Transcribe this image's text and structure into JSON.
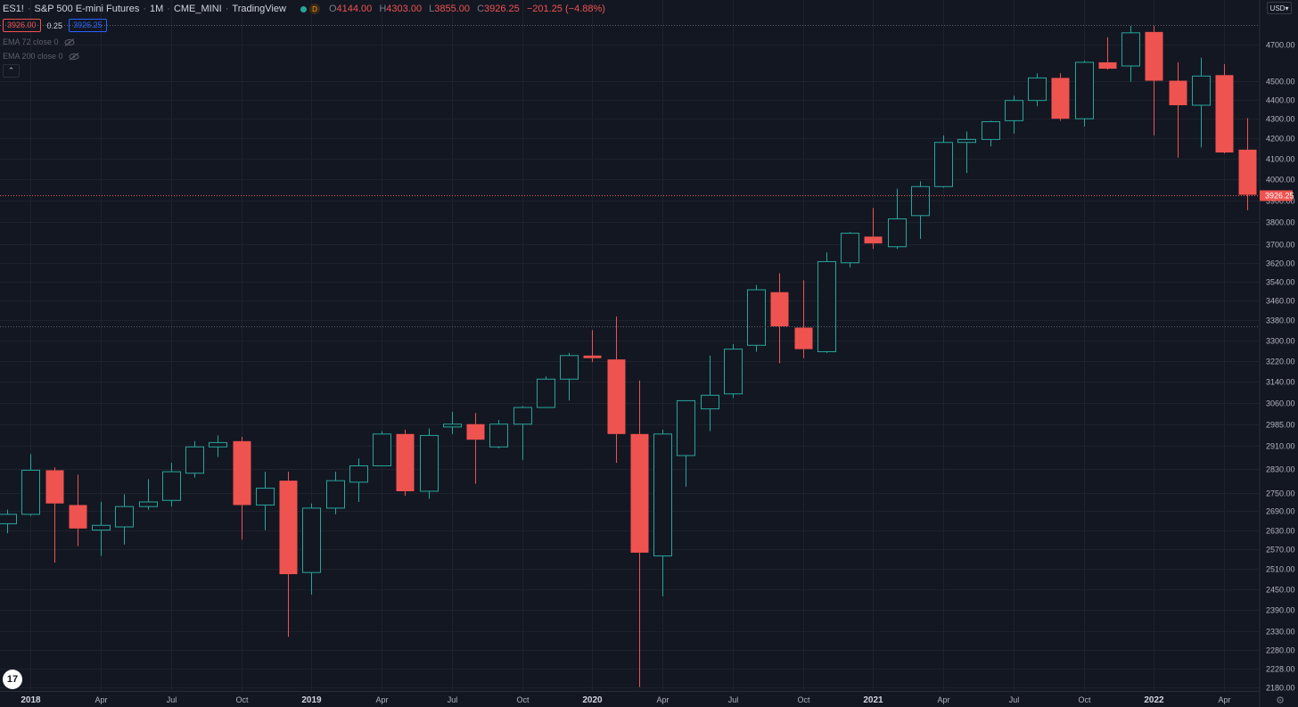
{
  "header": {
    "symbol": "ES1!",
    "name": "S&P 500 E-mini Futures",
    "interval": "1M",
    "exchange": "CME_MINI",
    "source": "TradingView",
    "badge_letter": "D",
    "ohlc": {
      "o_label": "O",
      "o_value": "4144.00",
      "h_label": "H",
      "h_value": "4303.00",
      "l_label": "L",
      "l_value": "3855.00",
      "c_label": "C",
      "c_value": "3926.25",
      "change": "−201.25 (−4.88%)"
    }
  },
  "quotes": {
    "bid": "3926.00",
    "spread": "0.25",
    "ask": "3926.25"
  },
  "indicators": [
    {
      "label": "EMA 72 close 0",
      "icon": "eye-hidden-icon"
    },
    {
      "label": "EMA 200 close 0",
      "icon": "eye-hidden-icon"
    }
  ],
  "currency": "USD",
  "logo_text": "17",
  "colors": {
    "up": "#26a69a",
    "down": "#ef5350",
    "background": "#131722",
    "grid": "#1e222d",
    "text": "#b2b5be"
  },
  "chart_data": {
    "type": "candlestick",
    "y_ticks": [
      4700,
      4500,
      4400,
      4300,
      4200,
      4100,
      4000,
      3900,
      3800,
      3700,
      3620,
      3540,
      3460,
      3380,
      3300,
      3220,
      3140,
      3060,
      2985,
      2910,
      2830,
      2750,
      2690,
      2630,
      2570,
      2510,
      2450,
      2390,
      2330,
      2280,
      2228,
      2180
    ],
    "y_tick_labels": [
      "4700.00",
      "4500.00",
      "4400.00",
      "4300.00",
      "4200.00",
      "4100.00",
      "4000.00",
      "3900.00",
      "3800.00",
      "3700.00",
      "3620.00",
      "3540.00",
      "3460.00",
      "3380.00",
      "3300.00",
      "3220.00",
      "3140.00",
      "3060.00",
      "2985.00",
      "2910.00",
      "2830.00",
      "2750.00",
      "2690.00",
      "2630.00",
      "2570.00",
      "2510.00",
      "2450.00",
      "2390.00",
      "2330.00",
      "2280.00",
      "2228.00",
      "2180.00"
    ],
    "y_scale": "log",
    "ylim": [
      2170,
      4810
    ],
    "x_tick_labels": [
      {
        "label": "2018",
        "bar": 1,
        "bold": true
      },
      {
        "label": "Apr",
        "bar": 4
      },
      {
        "label": "Jul",
        "bar": 7
      },
      {
        "label": "Oct",
        "bar": 10
      },
      {
        "label": "2019",
        "bar": 13,
        "bold": true
      },
      {
        "label": "Apr",
        "bar": 16
      },
      {
        "label": "Jul",
        "bar": 19
      },
      {
        "label": "Oct",
        "bar": 22
      },
      {
        "label": "2020",
        "bar": 25,
        "bold": true
      },
      {
        "label": "Apr",
        "bar": 28
      },
      {
        "label": "Jul",
        "bar": 31
      },
      {
        "label": "Oct",
        "bar": 34
      },
      {
        "label": "2021",
        "bar": 37,
        "bold": true
      },
      {
        "label": "Apr",
        "bar": 40
      },
      {
        "label": "Jul",
        "bar": 43
      },
      {
        "label": "Oct",
        "bar": 46
      },
      {
        "label": "2022",
        "bar": 49,
        "bold": true
      },
      {
        "label": "Apr",
        "bar": 52
      }
    ],
    "candles": [
      {
        "date": "2017-12",
        "o": 2650,
        "h": 2695,
        "l": 2620,
        "c": 2680
      },
      {
        "date": "2018-01",
        "o": 2680,
        "h": 2880,
        "l": 2675,
        "c": 2825
      },
      {
        "date": "2018-02",
        "o": 2825,
        "h": 2835,
        "l": 2530,
        "c": 2715
      },
      {
        "date": "2018-03",
        "o": 2710,
        "h": 2810,
        "l": 2580,
        "c": 2635
      },
      {
        "date": "2018-04",
        "o": 2630,
        "h": 2720,
        "l": 2550,
        "c": 2645
      },
      {
        "date": "2018-05",
        "o": 2640,
        "h": 2745,
        "l": 2585,
        "c": 2705
      },
      {
        "date": "2018-06",
        "o": 2705,
        "h": 2795,
        "l": 2695,
        "c": 2720
      },
      {
        "date": "2018-07",
        "o": 2725,
        "h": 2850,
        "l": 2705,
        "c": 2820
      },
      {
        "date": "2018-08",
        "o": 2815,
        "h": 2925,
        "l": 2800,
        "c": 2905
      },
      {
        "date": "2018-09",
        "o": 2905,
        "h": 2945,
        "l": 2870,
        "c": 2920
      },
      {
        "date": "2018-10",
        "o": 2925,
        "h": 2940,
        "l": 2600,
        "c": 2710
      },
      {
        "date": "2018-11",
        "o": 2710,
        "h": 2820,
        "l": 2630,
        "c": 2765
      },
      {
        "date": "2018-12",
        "o": 2790,
        "h": 2820,
        "l": 2315,
        "c": 2495
      },
      {
        "date": "2019-01",
        "o": 2500,
        "h": 2715,
        "l": 2435,
        "c": 2700
      },
      {
        "date": "2019-02",
        "o": 2700,
        "h": 2820,
        "l": 2680,
        "c": 2790
      },
      {
        "date": "2019-03",
        "o": 2785,
        "h": 2865,
        "l": 2720,
        "c": 2840
      },
      {
        "date": "2019-04",
        "o": 2840,
        "h": 2960,
        "l": 2840,
        "c": 2950
      },
      {
        "date": "2019-05",
        "o": 2950,
        "h": 2965,
        "l": 2740,
        "c": 2755
      },
      {
        "date": "2019-06",
        "o": 2755,
        "h": 2970,
        "l": 2730,
        "c": 2945
      },
      {
        "date": "2019-07",
        "o": 2975,
        "h": 3030,
        "l": 2950,
        "c": 2985
      },
      {
        "date": "2019-08",
        "o": 2985,
        "h": 3025,
        "l": 2780,
        "c": 2930
      },
      {
        "date": "2019-09",
        "o": 2905,
        "h": 3000,
        "l": 2900,
        "c": 2985
      },
      {
        "date": "2019-10",
        "o": 2985,
        "h": 3050,
        "l": 2860,
        "c": 3045
      },
      {
        "date": "2019-11",
        "o": 3045,
        "h": 3160,
        "l": 3045,
        "c": 3150
      },
      {
        "date": "2019-12",
        "o": 3150,
        "h": 3250,
        "l": 3070,
        "c": 3240
      },
      {
        "date": "2020-01",
        "o": 3240,
        "h": 3340,
        "l": 3215,
        "c": 3230
      },
      {
        "date": "2020-02",
        "o": 3225,
        "h": 3395,
        "l": 2850,
        "c": 2950
      },
      {
        "date": "2020-03",
        "o": 2950,
        "h": 3145,
        "l": 2180,
        "c": 2560
      },
      {
        "date": "2020-04",
        "o": 2550,
        "h": 2965,
        "l": 2430,
        "c": 2950
      },
      {
        "date": "2020-05",
        "o": 2875,
        "h": 3070,
        "l": 2770,
        "c": 3070
      },
      {
        "date": "2020-06",
        "o": 3040,
        "h": 3240,
        "l": 2960,
        "c": 3090
      },
      {
        "date": "2020-07",
        "o": 3095,
        "h": 3285,
        "l": 3080,
        "c": 3265
      },
      {
        "date": "2020-08",
        "o": 3280,
        "h": 3525,
        "l": 3255,
        "c": 3505
      },
      {
        "date": "2020-09",
        "o": 3495,
        "h": 3575,
        "l": 3210,
        "c": 3355
      },
      {
        "date": "2020-10",
        "o": 3350,
        "h": 3545,
        "l": 3230,
        "c": 3265
      },
      {
        "date": "2020-11",
        "o": 3255,
        "h": 3665,
        "l": 3250,
        "c": 3625
      },
      {
        "date": "2020-12",
        "o": 3620,
        "h": 3755,
        "l": 3600,
        "c": 3750
      },
      {
        "date": "2021-01",
        "o": 3735,
        "h": 3865,
        "l": 3680,
        "c": 3705
      },
      {
        "date": "2021-02",
        "o": 3690,
        "h": 3955,
        "l": 3680,
        "c": 3815
      },
      {
        "date": "2021-03",
        "o": 3830,
        "h": 3990,
        "l": 3725,
        "c": 3965
      },
      {
        "date": "2021-04",
        "o": 3965,
        "h": 4215,
        "l": 3960,
        "c": 4180
      },
      {
        "date": "2021-05",
        "o": 4180,
        "h": 4235,
        "l": 4030,
        "c": 4195
      },
      {
        "date": "2021-06",
        "o": 4195,
        "h": 4290,
        "l": 4160,
        "c": 4285
      },
      {
        "date": "2021-07",
        "o": 4290,
        "h": 4420,
        "l": 4225,
        "c": 4395
      },
      {
        "date": "2021-08",
        "o": 4395,
        "h": 4540,
        "l": 4365,
        "c": 4515
      },
      {
        "date": "2021-09",
        "o": 4515,
        "h": 4540,
        "l": 4290,
        "c": 4300
      },
      {
        "date": "2021-10",
        "o": 4300,
        "h": 4610,
        "l": 4260,
        "c": 4600
      },
      {
        "date": "2021-11",
        "o": 4600,
        "h": 4740,
        "l": 4560,
        "c": 4565
      },
      {
        "date": "2021-12",
        "o": 4580,
        "h": 4805,
        "l": 4495,
        "c": 4765
      },
      {
        "date": "2022-01",
        "o": 4770,
        "h": 4805,
        "l": 4215,
        "c": 4500
      },
      {
        "date": "2022-02",
        "o": 4500,
        "h": 4600,
        "l": 4105,
        "c": 4370
      },
      {
        "date": "2022-03",
        "o": 4370,
        "h": 4625,
        "l": 4155,
        "c": 4525
      },
      {
        "date": "2022-04",
        "o": 4530,
        "h": 4590,
        "l": 4125,
        "c": 4130
      },
      {
        "date": "2022-05",
        "o": 4144,
        "h": 4303,
        "l": 3855,
        "c": 3926.25
      }
    ],
    "last_price": 3926.25,
    "last_price_label": "3926.25",
    "reference_price": 3355,
    "grid": true
  }
}
